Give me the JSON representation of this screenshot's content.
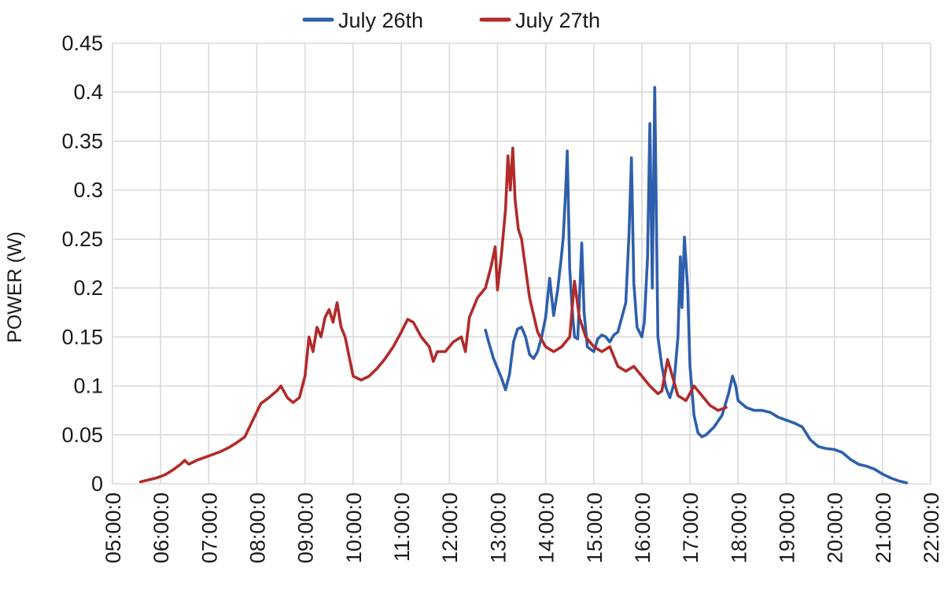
{
  "chart_data": {
    "type": "line",
    "ylabel": "POWER (W)",
    "xlabel": "",
    "title": "",
    "ylim": [
      0,
      0.45
    ],
    "xlim": [
      "05:00:00",
      "22:00:00"
    ],
    "x_ticks": [
      "05:00:0",
      "06:00:0",
      "07:00:0",
      "08:00:0",
      "09:00:0",
      "10:00:0",
      "11:00:0",
      "12:00:0",
      "13:00:0",
      "14:00:0",
      "15:00:0",
      "16:00:0",
      "17:00:0",
      "18:00:0",
      "19:00:0",
      "20:00:0",
      "21:00:0",
      "22:00:0"
    ],
    "y_ticks": [
      "0",
      "0.05",
      "0.1",
      "0.15",
      "0.2",
      "0.25",
      "0.3",
      "0.35",
      "0.4",
      "0.45"
    ],
    "grid": true,
    "legend_position": "top-center",
    "series": [
      {
        "name": "July 26th",
        "color": "#2e5fac",
        "points": [
          [
            "12:45",
            0.157
          ],
          [
            "12:50",
            0.142
          ],
          [
            "12:55",
            0.128
          ],
          [
            "13:00",
            0.118
          ],
          [
            "13:05",
            0.108
          ],
          [
            "13:10",
            0.096
          ],
          [
            "13:15",
            0.112
          ],
          [
            "13:20",
            0.145
          ],
          [
            "13:25",
            0.158
          ],
          [
            "13:30",
            0.16
          ],
          [
            "13:35",
            0.15
          ],
          [
            "13:40",
            0.132
          ],
          [
            "13:45",
            0.128
          ],
          [
            "13:50",
            0.135
          ],
          [
            "13:55",
            0.15
          ],
          [
            "14:00",
            0.17
          ],
          [
            "14:05",
            0.21
          ],
          [
            "14:10",
            0.172
          ],
          [
            "14:15",
            0.198
          ],
          [
            "14:20",
            0.235
          ],
          [
            "14:22",
            0.252
          ],
          [
            "14:25",
            0.3
          ],
          [
            "14:27",
            0.34
          ],
          [
            "14:30",
            0.22
          ],
          [
            "14:33",
            0.18
          ],
          [
            "14:36",
            0.15
          ],
          [
            "14:40",
            0.148
          ],
          [
            "14:43",
            0.205
          ],
          [
            "14:45",
            0.246
          ],
          [
            "14:48",
            0.175
          ],
          [
            "14:52",
            0.14
          ],
          [
            "15:00",
            0.135
          ],
          [
            "15:05",
            0.148
          ],
          [
            "15:10",
            0.152
          ],
          [
            "15:15",
            0.15
          ],
          [
            "15:20",
            0.145
          ],
          [
            "15:25",
            0.152
          ],
          [
            "15:30",
            0.155
          ],
          [
            "15:35",
            0.17
          ],
          [
            "15:40",
            0.185
          ],
          [
            "15:44",
            0.255
          ],
          [
            "15:47",
            0.333
          ],
          [
            "15:50",
            0.205
          ],
          [
            "15:54",
            0.16
          ],
          [
            "16:00",
            0.15
          ],
          [
            "16:03",
            0.165
          ],
          [
            "16:07",
            0.23
          ],
          [
            "16:10",
            0.368
          ],
          [
            "16:13",
            0.2
          ],
          [
            "16:16",
            0.405
          ],
          [
            "16:20",
            0.15
          ],
          [
            "16:25",
            0.12
          ],
          [
            "16:30",
            0.098
          ],
          [
            "16:35",
            0.088
          ],
          [
            "16:40",
            0.102
          ],
          [
            "16:45",
            0.15
          ],
          [
            "16:48",
            0.232
          ],
          [
            "16:50",
            0.18
          ],
          [
            "16:53",
            0.252
          ],
          [
            "16:57",
            0.2
          ],
          [
            "17:00",
            0.12
          ],
          [
            "17:05",
            0.07
          ],
          [
            "17:10",
            0.052
          ],
          [
            "17:15",
            0.048
          ],
          [
            "17:20",
            0.05
          ],
          [
            "17:30",
            0.058
          ],
          [
            "17:40",
            0.07
          ],
          [
            "17:48",
            0.092
          ],
          [
            "17:53",
            0.11
          ],
          [
            "17:57",
            0.1
          ],
          [
            "18:00",
            0.085
          ],
          [
            "18:10",
            0.078
          ],
          [
            "18:20",
            0.075
          ],
          [
            "18:30",
            0.075
          ],
          [
            "18:40",
            0.073
          ],
          [
            "18:50",
            0.068
          ],
          [
            "19:00",
            0.065
          ],
          [
            "19:10",
            0.062
          ],
          [
            "19:20",
            0.058
          ],
          [
            "19:30",
            0.045
          ],
          [
            "19:40",
            0.038
          ],
          [
            "19:50",
            0.036
          ],
          [
            "20:00",
            0.035
          ],
          [
            "20:10",
            0.032
          ],
          [
            "20:20",
            0.025
          ],
          [
            "20:30",
            0.02
          ],
          [
            "20:40",
            0.018
          ],
          [
            "20:50",
            0.015
          ],
          [
            "21:00",
            0.01
          ],
          [
            "21:10",
            0.006
          ],
          [
            "21:20",
            0.003
          ],
          [
            "21:30",
            0.001
          ]
        ]
      },
      {
        "name": "July 27th",
        "color": "#b22a2a",
        "points": [
          [
            "05:35",
            0.002
          ],
          [
            "05:45",
            0.004
          ],
          [
            "05:55",
            0.006
          ],
          [
            "06:05",
            0.009
          ],
          [
            "06:15",
            0.014
          ],
          [
            "06:25",
            0.02
          ],
          [
            "06:30",
            0.024
          ],
          [
            "06:35",
            0.02
          ],
          [
            "06:45",
            0.024
          ],
          [
            "06:55",
            0.027
          ],
          [
            "07:05",
            0.03
          ],
          [
            "07:15",
            0.033
          ],
          [
            "07:25",
            0.037
          ],
          [
            "07:35",
            0.042
          ],
          [
            "07:45",
            0.048
          ],
          [
            "07:55",
            0.065
          ],
          [
            "08:05",
            0.082
          ],
          [
            "08:15",
            0.088
          ],
          [
            "08:25",
            0.095
          ],
          [
            "08:30",
            0.1
          ],
          [
            "08:38",
            0.088
          ],
          [
            "08:45",
            0.083
          ],
          [
            "08:53",
            0.088
          ],
          [
            "09:00",
            0.11
          ],
          [
            "09:05",
            0.15
          ],
          [
            "09:10",
            0.135
          ],
          [
            "09:15",
            0.16
          ],
          [
            "09:20",
            0.15
          ],
          [
            "09:25",
            0.17
          ],
          [
            "09:30",
            0.178
          ],
          [
            "09:35",
            0.165
          ],
          [
            "09:40",
            0.185
          ],
          [
            "09:45",
            0.16
          ],
          [
            "09:50",
            0.15
          ],
          [
            "09:55",
            0.13
          ],
          [
            "10:00",
            0.11
          ],
          [
            "10:10",
            0.106
          ],
          [
            "10:20",
            0.11
          ],
          [
            "10:30",
            0.118
          ],
          [
            "10:40",
            0.128
          ],
          [
            "10:50",
            0.14
          ],
          [
            "11:00",
            0.155
          ],
          [
            "11:08",
            0.168
          ],
          [
            "11:15",
            0.165
          ],
          [
            "11:25",
            0.15
          ],
          [
            "11:35",
            0.14
          ],
          [
            "11:40",
            0.125
          ],
          [
            "11:45",
            0.135
          ],
          [
            "11:55",
            0.135
          ],
          [
            "12:05",
            0.145
          ],
          [
            "12:15",
            0.15
          ],
          [
            "12:20",
            0.135
          ],
          [
            "12:25",
            0.17
          ],
          [
            "12:35",
            0.19
          ],
          [
            "12:45",
            0.2
          ],
          [
            "12:52",
            0.222
          ],
          [
            "12:57",
            0.242
          ],
          [
            "13:00",
            0.198
          ],
          [
            "13:05",
            0.235
          ],
          [
            "13:10",
            0.28
          ],
          [
            "13:13",
            0.335
          ],
          [
            "13:16",
            0.3
          ],
          [
            "13:19",
            0.343
          ],
          [
            "13:22",
            0.29
          ],
          [
            "13:26",
            0.26
          ],
          [
            "13:30",
            0.25
          ],
          [
            "13:35",
            0.22
          ],
          [
            "13:40",
            0.19
          ],
          [
            "13:50",
            0.155
          ],
          [
            "14:00",
            0.14
          ],
          [
            "14:10",
            0.135
          ],
          [
            "14:20",
            0.14
          ],
          [
            "14:30",
            0.15
          ],
          [
            "14:36",
            0.207
          ],
          [
            "14:42",
            0.17
          ],
          [
            "14:50",
            0.15
          ],
          [
            "15:00",
            0.14
          ],
          [
            "15:10",
            0.135
          ],
          [
            "15:20",
            0.14
          ],
          [
            "15:30",
            0.12
          ],
          [
            "15:40",
            0.115
          ],
          [
            "15:50",
            0.12
          ],
          [
            "16:00",
            0.11
          ],
          [
            "16:10",
            0.1
          ],
          [
            "16:20",
            0.092
          ],
          [
            "16:25",
            0.095
          ],
          [
            "16:32",
            0.127
          ],
          [
            "16:38",
            0.11
          ],
          [
            "16:45",
            0.09
          ],
          [
            "16:55",
            0.085
          ],
          [
            "17:05",
            0.1
          ],
          [
            "17:15",
            0.09
          ],
          [
            "17:25",
            0.08
          ],
          [
            "17:35",
            0.075
          ],
          [
            "17:45",
            0.078
          ]
        ]
      }
    ]
  }
}
